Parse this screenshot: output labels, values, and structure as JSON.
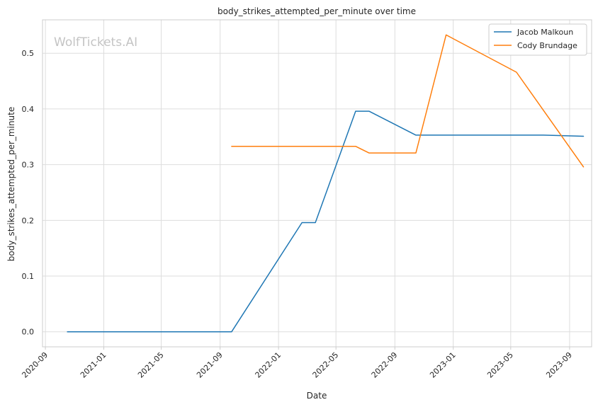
{
  "chart_data": {
    "type": "line",
    "title": "body_strikes_attempted_per_minute over time",
    "xlabel": "Date",
    "ylabel": "body_strikes_attempted_per_minute",
    "watermark": "WolfTickets.AI",
    "x_ticks": [
      "2020-09",
      "2021-01",
      "2021-05",
      "2021-09",
      "2022-01",
      "2022-05",
      "2022-09",
      "2023-01",
      "2023-05",
      "2023-09"
    ],
    "y_ticks": [
      "0.0",
      "0.1",
      "0.2",
      "0.3",
      "0.4",
      "0.5"
    ],
    "xlim": [
      "2020-08-26",
      "2023-10-17"
    ],
    "ylim": [
      -0.027,
      0.56
    ],
    "grid": true,
    "legend_position": "top-right",
    "series": [
      {
        "name": "Jacob Malkoun",
        "color": "#1f77b4",
        "x": [
          "2020-10-17",
          "2021-09-25",
          "2022-02-19",
          "2022-03-19",
          "2022-06-11",
          "2022-07-09",
          "2022-10-15",
          "2023-07-08",
          "2023-09-30"
        ],
        "y": [
          0.0,
          0.0,
          0.196,
          0.196,
          0.396,
          0.396,
          0.353,
          0.353,
          0.351
        ]
      },
      {
        "name": "Cody Brundage",
        "color": "#ff7f0e",
        "x": [
          "2021-09-25",
          "2022-06-11",
          "2022-07-09",
          "2022-10-15",
          "2022-12-17",
          "2023-05-13",
          "2023-09-30"
        ],
        "y": [
          0.333,
          0.333,
          0.321,
          0.321,
          0.533,
          0.466,
          0.296
        ]
      }
    ]
  }
}
